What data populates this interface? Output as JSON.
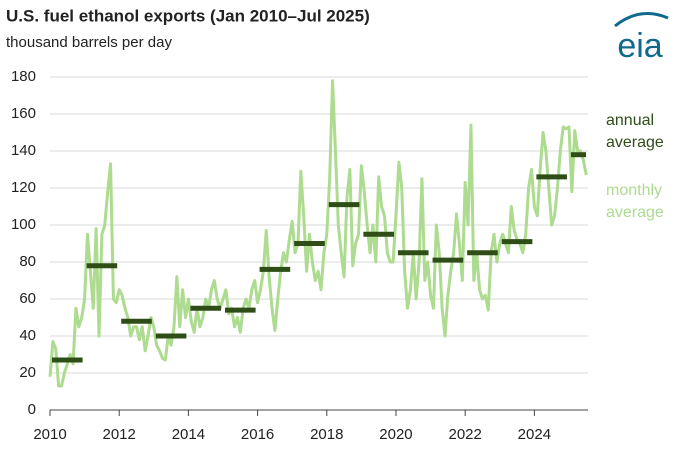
{
  "chart_data": {
    "type": "line",
    "title": "U.S. fuel ethanol exports (Jan 2010–Jul 2025)",
    "subtitle": "thousand barrels per day",
    "logo": "eia",
    "xlim": [
      2010,
      2025.55
    ],
    "xticks": [
      2010,
      2012,
      2014,
      2016,
      2018,
      2020,
      2022,
      2024
    ],
    "ylim": [
      0,
      180
    ],
    "yticks": [
      0,
      20,
      40,
      60,
      80,
      100,
      120,
      140,
      160,
      180
    ],
    "grid": true,
    "legend": "right",
    "series": [
      {
        "name": "monthly average",
        "color": "#addb8f",
        "mark": "line",
        "x": [
          2010,
          2010.083,
          2010.167,
          2010.25,
          2010.333,
          2010.417,
          2010.5,
          2010.583,
          2010.667,
          2010.75,
          2010.833,
          2010.917,
          2011,
          2011.083,
          2011.167,
          2011.25,
          2011.333,
          2011.417,
          2011.5,
          2011.583,
          2011.667,
          2011.75,
          2011.833,
          2011.917,
          2012,
          2012.083,
          2012.167,
          2012.25,
          2012.333,
          2012.417,
          2012.5,
          2012.583,
          2012.667,
          2012.75,
          2012.833,
          2012.917,
          2013,
          2013.083,
          2013.167,
          2013.25,
          2013.333,
          2013.417,
          2013.5,
          2013.583,
          2013.667,
          2013.75,
          2013.833,
          2013.917,
          2014,
          2014.083,
          2014.167,
          2014.25,
          2014.333,
          2014.417,
          2014.5,
          2014.583,
          2014.667,
          2014.75,
          2014.833,
          2014.917,
          2015,
          2015.083,
          2015.167,
          2015.25,
          2015.333,
          2015.417,
          2015.5,
          2015.583,
          2015.667,
          2015.75,
          2015.833,
          2015.917,
          2016,
          2016.083,
          2016.167,
          2016.25,
          2016.333,
          2016.417,
          2016.5,
          2016.583,
          2016.667,
          2016.75,
          2016.833,
          2016.917,
          2017,
          2017.083,
          2017.167,
          2017.25,
          2017.333,
          2017.417,
          2017.5,
          2017.583,
          2017.667,
          2017.75,
          2017.833,
          2017.917,
          2018,
          2018.083,
          2018.167,
          2018.25,
          2018.333,
          2018.417,
          2018.5,
          2018.583,
          2018.667,
          2018.75,
          2018.833,
          2018.917,
          2019,
          2019.083,
          2019.167,
          2019.25,
          2019.333,
          2019.417,
          2019.5,
          2019.583,
          2019.667,
          2019.75,
          2019.833,
          2019.917,
          2020,
          2020.083,
          2020.167,
          2020.25,
          2020.333,
          2020.417,
          2020.5,
          2020.583,
          2020.667,
          2020.75,
          2020.833,
          2020.917,
          2021,
          2021.083,
          2021.167,
          2021.25,
          2021.333,
          2021.417,
          2021.5,
          2021.583,
          2021.667,
          2021.75,
          2021.833,
          2021.917,
          2022,
          2022.083,
          2022.167,
          2022.25,
          2022.333,
          2022.417,
          2022.5,
          2022.583,
          2022.667,
          2022.75,
          2022.833,
          2022.917,
          2023,
          2023.083,
          2023.167,
          2023.25,
          2023.333,
          2023.417,
          2023.5,
          2023.583,
          2023.667,
          2023.75,
          2023.833,
          2023.917,
          2024,
          2024.083,
          2024.167,
          2024.25,
          2024.333,
          2024.417,
          2024.5,
          2024.583,
          2024.667,
          2024.75,
          2024.833,
          2024.917,
          2025,
          2025.083,
          2025.167,
          2025.25,
          2025.333,
          2025.417,
          2025.5
        ],
        "values": [
          18,
          37,
          33,
          13,
          13,
          20,
          25,
          30,
          25,
          55,
          45,
          50,
          60,
          95,
          75,
          55,
          98,
          40,
          95,
          100,
          118,
          133,
          60,
          58,
          65,
          62,
          55,
          50,
          40,
          45,
          45,
          38,
          45,
          32,
          40,
          50,
          45,
          35,
          32,
          28,
          27,
          40,
          35,
          45,
          72,
          45,
          65,
          50,
          60,
          48,
          42,
          55,
          45,
          50,
          60,
          55,
          65,
          70,
          60,
          55,
          60,
          65,
          52,
          55,
          45,
          50,
          42,
          55,
          60,
          55,
          65,
          70,
          58,
          65,
          75,
          97,
          72,
          55,
          43,
          60,
          75,
          85,
          80,
          92,
          102,
          85,
          90,
          129,
          105,
          75,
          95,
          80,
          70,
          75,
          65,
          85,
          95,
          125,
          178,
          140,
          100,
          85,
          72,
          115,
          130,
          78,
          90,
          95,
          132,
          118,
          100,
          85,
          100,
          80,
          126,
          110,
          105,
          85,
          80,
          80,
          105,
          134,
          120,
          75,
          55,
          65,
          85,
          60,
          80,
          125,
          70,
          80,
          62,
          55,
          100,
          85,
          55,
          40,
          62,
          75,
          85,
          106,
          90,
          70,
          123,
          100,
          154,
          70,
          85,
          65,
          60,
          62,
          54,
          85,
          95,
          80,
          90,
          95,
          90,
          85,
          110,
          97,
          92,
          90,
          85,
          95,
          120,
          130,
          110,
          105,
          130,
          150,
          140,
          120,
          100,
          105,
          120,
          140,
          153,
          152,
          153,
          118,
          151,
          140,
          140,
          135,
          127
        ]
      },
      {
        "name": "annual average",
        "color": "#2e4d17",
        "mark": "dash",
        "x": [
          2010,
          2011,
          2012,
          2013,
          2014,
          2015,
          2016,
          2017,
          2018,
          2019,
          2020,
          2021,
          2022,
          2023,
          2024,
          2025
        ],
        "values": [
          27,
          78,
          48,
          40,
          55,
          54,
          76,
          90,
          111,
          95,
          85,
          81,
          85,
          91,
          126,
          138
        ]
      }
    ]
  }
}
